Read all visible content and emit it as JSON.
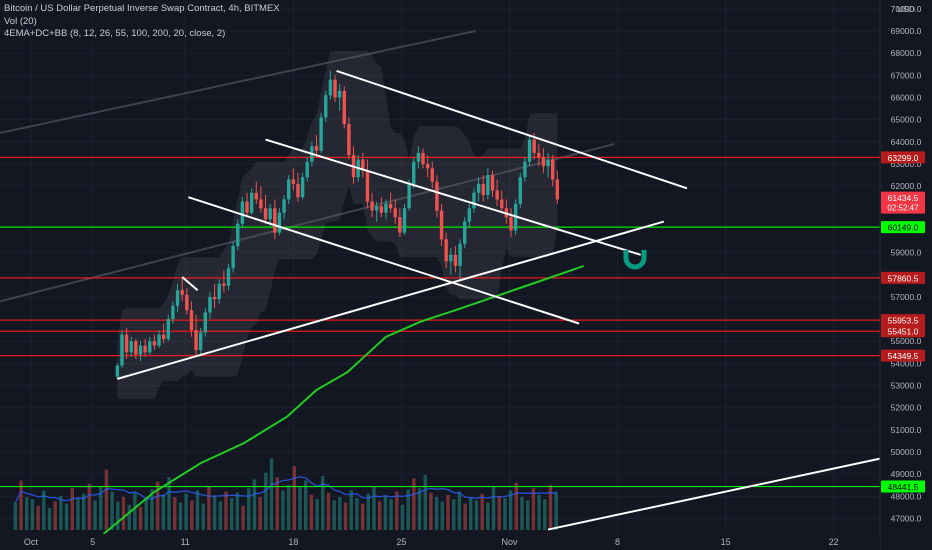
{
  "header": {
    "symbol_line": "Bitcoin / US Dollar Perpetual Inverse Swap Contract, 4h, BITMEX",
    "volume_line": "Vol (20)",
    "indicator_line": "4EMA+DC+BB (8, 12, 26, 55, 100, 200, 20, close, 2)"
  },
  "colors": {
    "background": "#131722",
    "up": "#26a69a",
    "down": "#ef5350",
    "green_level": "#00ff00",
    "red_level": "#ff1a1a",
    "trendline": "#ffffff",
    "ema": "#22cc22",
    "marker": "#089981"
  },
  "chart_data": {
    "type": "candlestick",
    "currency_label": "USD",
    "y_axis_ticks": [
      70000.0,
      69000.0,
      68000.0,
      67000.0,
      66000.0,
      65000.0,
      64000.0,
      63000.0,
      62000.0,
      59000.0,
      58000.0,
      57000.0,
      55000.0,
      54000.0,
      53000.0,
      52000.0,
      51000.0,
      50000.0,
      49000.0,
      48000.0,
      47000.0
    ],
    "y_axis_tick_labels": [
      "70000.0",
      "69000.0",
      "68000.0",
      "67000.0",
      "66000.0",
      "65000.0",
      "64000.0",
      "63000.0",
      "62000.0",
      "59000.0",
      "58000.0",
      "57000.0",
      "55000.0",
      "54000.0",
      "53000.0",
      "52000.0",
      "51000.0",
      "50000.0",
      "49000.0",
      "48000.0",
      "47000.0"
    ],
    "ylim": [
      46300,
      70400
    ],
    "x_axis_ticks": [
      {
        "label": "Oct",
        "day": 1
      },
      {
        "label": "5",
        "day": 5
      },
      {
        "label": "11",
        "day": 11
      },
      {
        "label": "18",
        "day": 18
      },
      {
        "label": "25",
        "day": 25
      },
      {
        "label": "Nov",
        "day": 32
      },
      {
        "label": "8",
        "day": 39
      },
      {
        "label": "15",
        "day": 46
      },
      {
        "label": "22",
        "day": 53
      }
    ],
    "xlim_days": [
      -1.0,
      56.0
    ],
    "price_levels": [
      {
        "label": "63299.0",
        "value": 63299,
        "color": "red"
      },
      {
        "label": "60149.0",
        "value": 60149,
        "color": "green"
      },
      {
        "label": "57860.5",
        "value": 57860.5,
        "color": "red"
      },
      {
        "label": "55953.5",
        "value": 55953.5,
        "color": "red"
      },
      {
        "label": "55451.0",
        "value": 55451,
        "color": "red"
      },
      {
        "label": "54349.5",
        "value": 54349.5,
        "color": "red"
      },
      {
        "label": "48441.5",
        "value": 48441.5,
        "color": "green"
      }
    ],
    "last_price": {
      "value": 61434.5,
      "label": "61434.5",
      "countdown": "02:52:47"
    },
    "trendlines": [
      {
        "name": "descending-upper",
        "from": [
          20.8,
          67200
        ],
        "to": [
          43.5,
          61900
        ]
      },
      {
        "name": "descending-middle",
        "from": [
          16.2,
          64100
        ],
        "to": [
          40.5,
          58900
        ]
      },
      {
        "name": "descending-lower",
        "from": [
          11.2,
          61500
        ],
        "to": [
          36.5,
          55800
        ]
      },
      {
        "name": "ascending-support",
        "from": [
          6.6,
          53300
        ],
        "to": [
          42.0,
          60400
        ]
      },
      {
        "name": "ascending-long",
        "from": [
          34.5,
          46500
        ],
        "to": [
          56.0,
          49700
        ]
      },
      {
        "name": "short-top",
        "from": [
          10.8,
          57900
        ],
        "to": [
          11.8,
          57300
        ]
      }
    ],
    "faded_line": {
      "from": [
        -1.0,
        64400
      ],
      "to": [
        29.8,
        69000
      ]
    },
    "faded_line_2": {
      "from": [
        -1.0,
        56800
      ],
      "to": [
        38.8,
        63900
      ]
    },
    "ema_line": [
      [
        5.7,
        46300
      ],
      [
        9.0,
        48200
      ],
      [
        12.0,
        49500
      ],
      [
        14.8,
        50400
      ],
      [
        17.6,
        51600
      ],
      [
        19.5,
        52800
      ],
      [
        21.5,
        53600
      ],
      [
        24.0,
        55200
      ],
      [
        26.3,
        55900
      ],
      [
        28.5,
        56400
      ],
      [
        31.0,
        57000
      ],
      [
        33.5,
        57600
      ],
      [
        36.0,
        58200
      ],
      [
        36.8,
        58400
      ]
    ],
    "candles": [
      {
        "d": 6.6,
        "o": 53400,
        "h": 54000,
        "l": 53300,
        "c": 53900
      },
      {
        "d": 6.9,
        "o": 53900,
        "h": 55500,
        "l": 53800,
        "c": 55300
      },
      {
        "d": 7.2,
        "o": 55300,
        "h": 55600,
        "l": 54200,
        "c": 54500
      },
      {
        "d": 7.5,
        "o": 54500,
        "h": 55200,
        "l": 54300,
        "c": 55000
      },
      {
        "d": 7.8,
        "o": 55000,
        "h": 55100,
        "l": 54200,
        "c": 54400
      },
      {
        "d": 8.1,
        "o": 54400,
        "h": 55000,
        "l": 54100,
        "c": 54800
      },
      {
        "d": 8.4,
        "o": 54800,
        "h": 55100,
        "l": 54300,
        "c": 54500
      },
      {
        "d": 8.7,
        "o": 54500,
        "h": 55200,
        "l": 54400,
        "c": 55000
      },
      {
        "d": 9.0,
        "o": 55000,
        "h": 55300,
        "l": 54600,
        "c": 54800
      },
      {
        "d": 9.3,
        "o": 54800,
        "h": 55500,
        "l": 54700,
        "c": 55300
      },
      {
        "d": 9.6,
        "o": 55300,
        "h": 55800,
        "l": 54900,
        "c": 55100
      },
      {
        "d": 9.9,
        "o": 55100,
        "h": 56200,
        "l": 55000,
        "c": 56000
      },
      {
        "d": 10.2,
        "o": 56000,
        "h": 56800,
        "l": 55800,
        "c": 56600
      },
      {
        "d": 10.5,
        "o": 56600,
        "h": 57600,
        "l": 56300,
        "c": 57300
      },
      {
        "d": 10.8,
        "o": 57300,
        "h": 57900,
        "l": 56800,
        "c": 57100
      },
      {
        "d": 11.1,
        "o": 57100,
        "h": 57400,
        "l": 56200,
        "c": 56400
      },
      {
        "d": 11.4,
        "o": 56400,
        "h": 56800,
        "l": 55200,
        "c": 55500
      },
      {
        "d": 11.7,
        "o": 55500,
        "h": 56200,
        "l": 54300,
        "c": 54600
      },
      {
        "d": 12.0,
        "o": 54600,
        "h": 55600,
        "l": 54400,
        "c": 55400
      },
      {
        "d": 12.3,
        "o": 55400,
        "h": 56500,
        "l": 55200,
        "c": 56300
      },
      {
        "d": 12.6,
        "o": 56300,
        "h": 57200,
        "l": 56000,
        "c": 57000
      },
      {
        "d": 12.9,
        "o": 57000,
        "h": 57600,
        "l": 56500,
        "c": 56900
      },
      {
        "d": 13.2,
        "o": 56900,
        "h": 57800,
        "l": 56700,
        "c": 57600
      },
      {
        "d": 13.5,
        "o": 57600,
        "h": 58200,
        "l": 57200,
        "c": 57500
      },
      {
        "d": 13.8,
        "o": 57500,
        "h": 58500,
        "l": 57300,
        "c": 58300
      },
      {
        "d": 14.1,
        "o": 58300,
        "h": 59500,
        "l": 58100,
        "c": 59300
      },
      {
        "d": 14.4,
        "o": 59300,
        "h": 60500,
        "l": 59100,
        "c": 60300
      },
      {
        "d": 14.7,
        "o": 60300,
        "h": 61500,
        "l": 60100,
        "c": 61300
      },
      {
        "d": 15.0,
        "o": 61300,
        "h": 61700,
        "l": 60600,
        "c": 60800
      },
      {
        "d": 15.3,
        "o": 60800,
        "h": 61900,
        "l": 60700,
        "c": 61700
      },
      {
        "d": 15.6,
        "o": 61700,
        "h": 62200,
        "l": 61200,
        "c": 61400
      },
      {
        "d": 15.9,
        "o": 61400,
        "h": 62000,
        "l": 60800,
        "c": 61000
      },
      {
        "d": 16.2,
        "o": 61000,
        "h": 61600,
        "l": 60300,
        "c": 60500
      },
      {
        "d": 16.5,
        "o": 60500,
        "h": 61200,
        "l": 60200,
        "c": 61000
      },
      {
        "d": 16.8,
        "o": 61000,
        "h": 61400,
        "l": 59600,
        "c": 59900
      },
      {
        "d": 17.1,
        "o": 59900,
        "h": 61000,
        "l": 59800,
        "c": 60800
      },
      {
        "d": 17.4,
        "o": 60800,
        "h": 61600,
        "l": 60500,
        "c": 61400
      },
      {
        "d": 17.7,
        "o": 61400,
        "h": 62500,
        "l": 61200,
        "c": 62300
      },
      {
        "d": 18.0,
        "o": 62300,
        "h": 62800,
        "l": 61800,
        "c": 62100
      },
      {
        "d": 18.3,
        "o": 62100,
        "h": 62600,
        "l": 61300,
        "c": 61500
      },
      {
        "d": 18.6,
        "o": 61500,
        "h": 62600,
        "l": 61400,
        "c": 62400
      },
      {
        "d": 18.9,
        "o": 62400,
        "h": 63300,
        "l": 62200,
        "c": 63100
      },
      {
        "d": 19.2,
        "o": 63100,
        "h": 64000,
        "l": 62900,
        "c": 63800
      },
      {
        "d": 19.5,
        "o": 63800,
        "h": 64300,
        "l": 63300,
        "c": 63600
      },
      {
        "d": 19.8,
        "o": 63600,
        "h": 65300,
        "l": 63500,
        "c": 65100
      },
      {
        "d": 20.1,
        "o": 65100,
        "h": 66300,
        "l": 64900,
        "c": 66100
      },
      {
        "d": 20.4,
        "o": 66100,
        "h": 67200,
        "l": 65900,
        "c": 66800
      },
      {
        "d": 20.7,
        "o": 66800,
        "h": 67000,
        "l": 65800,
        "c": 66000
      },
      {
        "d": 21.0,
        "o": 66000,
        "h": 66600,
        "l": 65400,
        "c": 66300
      },
      {
        "d": 21.3,
        "o": 66300,
        "h": 66500,
        "l": 64600,
        "c": 64800
      },
      {
        "d": 21.6,
        "o": 64800,
        "h": 65100,
        "l": 63200,
        "c": 63400
      },
      {
        "d": 21.9,
        "o": 63400,
        "h": 63800,
        "l": 62100,
        "c": 62400
      },
      {
        "d": 22.2,
        "o": 62400,
        "h": 63400,
        "l": 62200,
        "c": 63200
      },
      {
        "d": 22.5,
        "o": 63200,
        "h": 63500,
        "l": 62400,
        "c": 62700
      },
      {
        "d": 22.8,
        "o": 62700,
        "h": 63200,
        "l": 61000,
        "c": 61300
      },
      {
        "d": 23.1,
        "o": 61300,
        "h": 61700,
        "l": 60600,
        "c": 60900
      },
      {
        "d": 23.4,
        "o": 60900,
        "h": 61300,
        "l": 60400,
        "c": 61100
      },
      {
        "d": 23.7,
        "o": 61100,
        "h": 61500,
        "l": 60600,
        "c": 60800
      },
      {
        "d": 24.0,
        "o": 60800,
        "h": 61400,
        "l": 60500,
        "c": 61200
      },
      {
        "d": 24.3,
        "o": 61200,
        "h": 61700,
        "l": 60800,
        "c": 61000
      },
      {
        "d": 24.6,
        "o": 61000,
        "h": 61400,
        "l": 60300,
        "c": 60600
      },
      {
        "d": 24.9,
        "o": 60600,
        "h": 61000,
        "l": 59700,
        "c": 59900
      },
      {
        "d": 25.2,
        "o": 59900,
        "h": 61200,
        "l": 59800,
        "c": 61000
      },
      {
        "d": 25.5,
        "o": 61000,
        "h": 62300,
        "l": 60900,
        "c": 62100
      },
      {
        "d": 25.8,
        "o": 62100,
        "h": 63300,
        "l": 61900,
        "c": 63100
      },
      {
        "d": 26.1,
        "o": 63100,
        "h": 63800,
        "l": 62800,
        "c": 63500
      },
      {
        "d": 26.4,
        "o": 63500,
        "h": 63700,
        "l": 62800,
        "c": 63000
      },
      {
        "d": 26.7,
        "o": 63000,
        "h": 63400,
        "l": 62400,
        "c": 62800
      },
      {
        "d": 27.0,
        "o": 62800,
        "h": 63100,
        "l": 61900,
        "c": 62200
      },
      {
        "d": 27.3,
        "o": 62200,
        "h": 62500,
        "l": 60600,
        "c": 60900
      },
      {
        "d": 27.6,
        "o": 60900,
        "h": 61200,
        "l": 59300,
        "c": 59600
      },
      {
        "d": 27.9,
        "o": 59600,
        "h": 59900,
        "l": 58300,
        "c": 58600
      },
      {
        "d": 28.2,
        "o": 58600,
        "h": 59200,
        "l": 58000,
        "c": 58900
      },
      {
        "d": 28.5,
        "o": 58900,
        "h": 59300,
        "l": 58100,
        "c": 58400
      },
      {
        "d": 28.8,
        "o": 58400,
        "h": 59600,
        "l": 57800,
        "c": 59400
      },
      {
        "d": 29.1,
        "o": 59400,
        "h": 60600,
        "l": 59200,
        "c": 60400
      },
      {
        "d": 29.4,
        "o": 60400,
        "h": 61200,
        "l": 60100,
        "c": 61000
      },
      {
        "d": 29.7,
        "o": 61000,
        "h": 61900,
        "l": 60800,
        "c": 61700
      },
      {
        "d": 30.0,
        "o": 61700,
        "h": 62400,
        "l": 61300,
        "c": 62100
      },
      {
        "d": 30.3,
        "o": 62100,
        "h": 62500,
        "l": 61300,
        "c": 61600
      },
      {
        "d": 30.6,
        "o": 61600,
        "h": 62800,
        "l": 61400,
        "c": 62500
      },
      {
        "d": 30.9,
        "o": 62500,
        "h": 62700,
        "l": 61500,
        "c": 61800
      },
      {
        "d": 31.2,
        "o": 61800,
        "h": 62300,
        "l": 61100,
        "c": 61400
      },
      {
        "d": 31.5,
        "o": 61400,
        "h": 61800,
        "l": 60800,
        "c": 61000
      },
      {
        "d": 31.8,
        "o": 61000,
        "h": 61400,
        "l": 60300,
        "c": 60600
      },
      {
        "d": 32.1,
        "o": 60600,
        "h": 61000,
        "l": 59700,
        "c": 60000
      },
      {
        "d": 32.4,
        "o": 60000,
        "h": 61400,
        "l": 59800,
        "c": 61200
      },
      {
        "d": 32.7,
        "o": 61200,
        "h": 62600,
        "l": 61000,
        "c": 62400
      },
      {
        "d": 33.0,
        "o": 62400,
        "h": 63300,
        "l": 62200,
        "c": 63100
      },
      {
        "d": 33.3,
        "o": 63100,
        "h": 64300,
        "l": 62900,
        "c": 64100
      },
      {
        "d": 33.6,
        "o": 64100,
        "h": 64400,
        "l": 63200,
        "c": 63500
      },
      {
        "d": 33.9,
        "o": 63500,
        "h": 63900,
        "l": 62900,
        "c": 63300
      },
      {
        "d": 34.2,
        "o": 63300,
        "h": 63700,
        "l": 62600,
        "c": 62900
      },
      {
        "d": 34.5,
        "o": 62900,
        "h": 63500,
        "l": 62400,
        "c": 63200
      },
      {
        "d": 34.8,
        "o": 63200,
        "h": 63400,
        "l": 62000,
        "c": 62300
      },
      {
        "d": 35.1,
        "o": 62300,
        "h": 62700,
        "l": 61200,
        "c": 61400
      }
    ],
    "volumes": [
      2.5,
      4.5,
      3.0,
      2.8,
      2.2,
      3.6,
      2.0,
      2.6,
      3.1,
      2.4,
      3.8,
      2.9,
      3.3,
      4.2,
      2.7,
      3.9,
      5.5,
      3.5,
      2.6,
      3.0,
      2.3,
      3.4,
      2.1,
      2.8,
      3.7,
      4.4,
      3.2,
      4.8,
      3.0,
      2.5,
      3.3,
      2.7,
      3.6,
      2.4,
      4.0,
      3.1,
      2.6,
      3.5,
      2.9,
      3.4,
      2.2,
      3.8,
      4.6,
      3.0,
      5.2,
      6.5,
      4.8,
      3.6,
      4.1,
      5.8,
      3.9,
      4.5,
      3.2,
      2.8,
      4.9,
      3.4,
      2.7,
      3.0,
      2.5,
      3.6,
      2.9,
      2.4,
      3.3,
      3.9,
      2.6,
      3.1,
      2.8,
      3.5,
      2.3,
      3.7,
      4.7,
      3.8,
      5.0,
      3.4,
      3.0,
      2.6,
      3.2,
      2.8,
      3.5,
      2.4,
      3.0,
      2.7,
      3.3,
      2.5,
      3.9,
      3.1,
      2.9,
      3.6,
      4.3,
      3.0,
      2.7,
      3.8,
      3.2,
      2.8,
      4.1,
      3.5
    ]
  }
}
